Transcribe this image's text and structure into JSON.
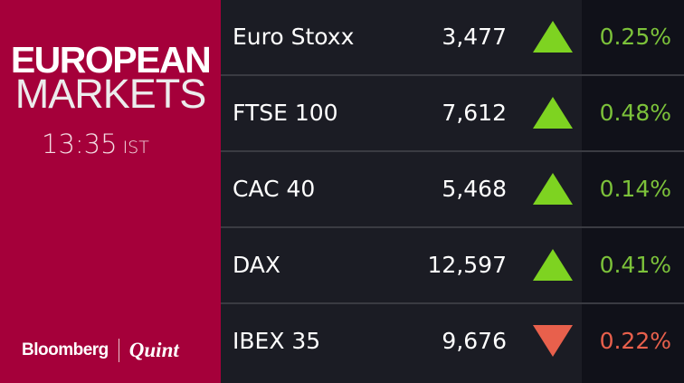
{
  "header": {
    "line1": "EUROPEAN",
    "line2": "MARKETS",
    "time": "13:35",
    "timezone": "IST"
  },
  "logo": {
    "brand1": "Bloomberg",
    "brand2": "Quint"
  },
  "colors": {
    "brand": "#a5003a",
    "up": "#7ed321",
    "up_text": "#7cc23a",
    "down": "#e8604c"
  },
  "markets": [
    {
      "name": "Euro Stoxx",
      "value": "3,477",
      "direction": "up",
      "change": "0.25%"
    },
    {
      "name": "FTSE 100",
      "value": "7,612",
      "direction": "up",
      "change": "0.48%"
    },
    {
      "name": "CAC 40",
      "value": "5,468",
      "direction": "up",
      "change": "0.14%"
    },
    {
      "name": "DAX",
      "value": "12,597",
      "direction": "up",
      "change": "0.41%"
    },
    {
      "name": "IBEX 35",
      "value": "9,676",
      "direction": "down",
      "change": "0.22%"
    }
  ]
}
